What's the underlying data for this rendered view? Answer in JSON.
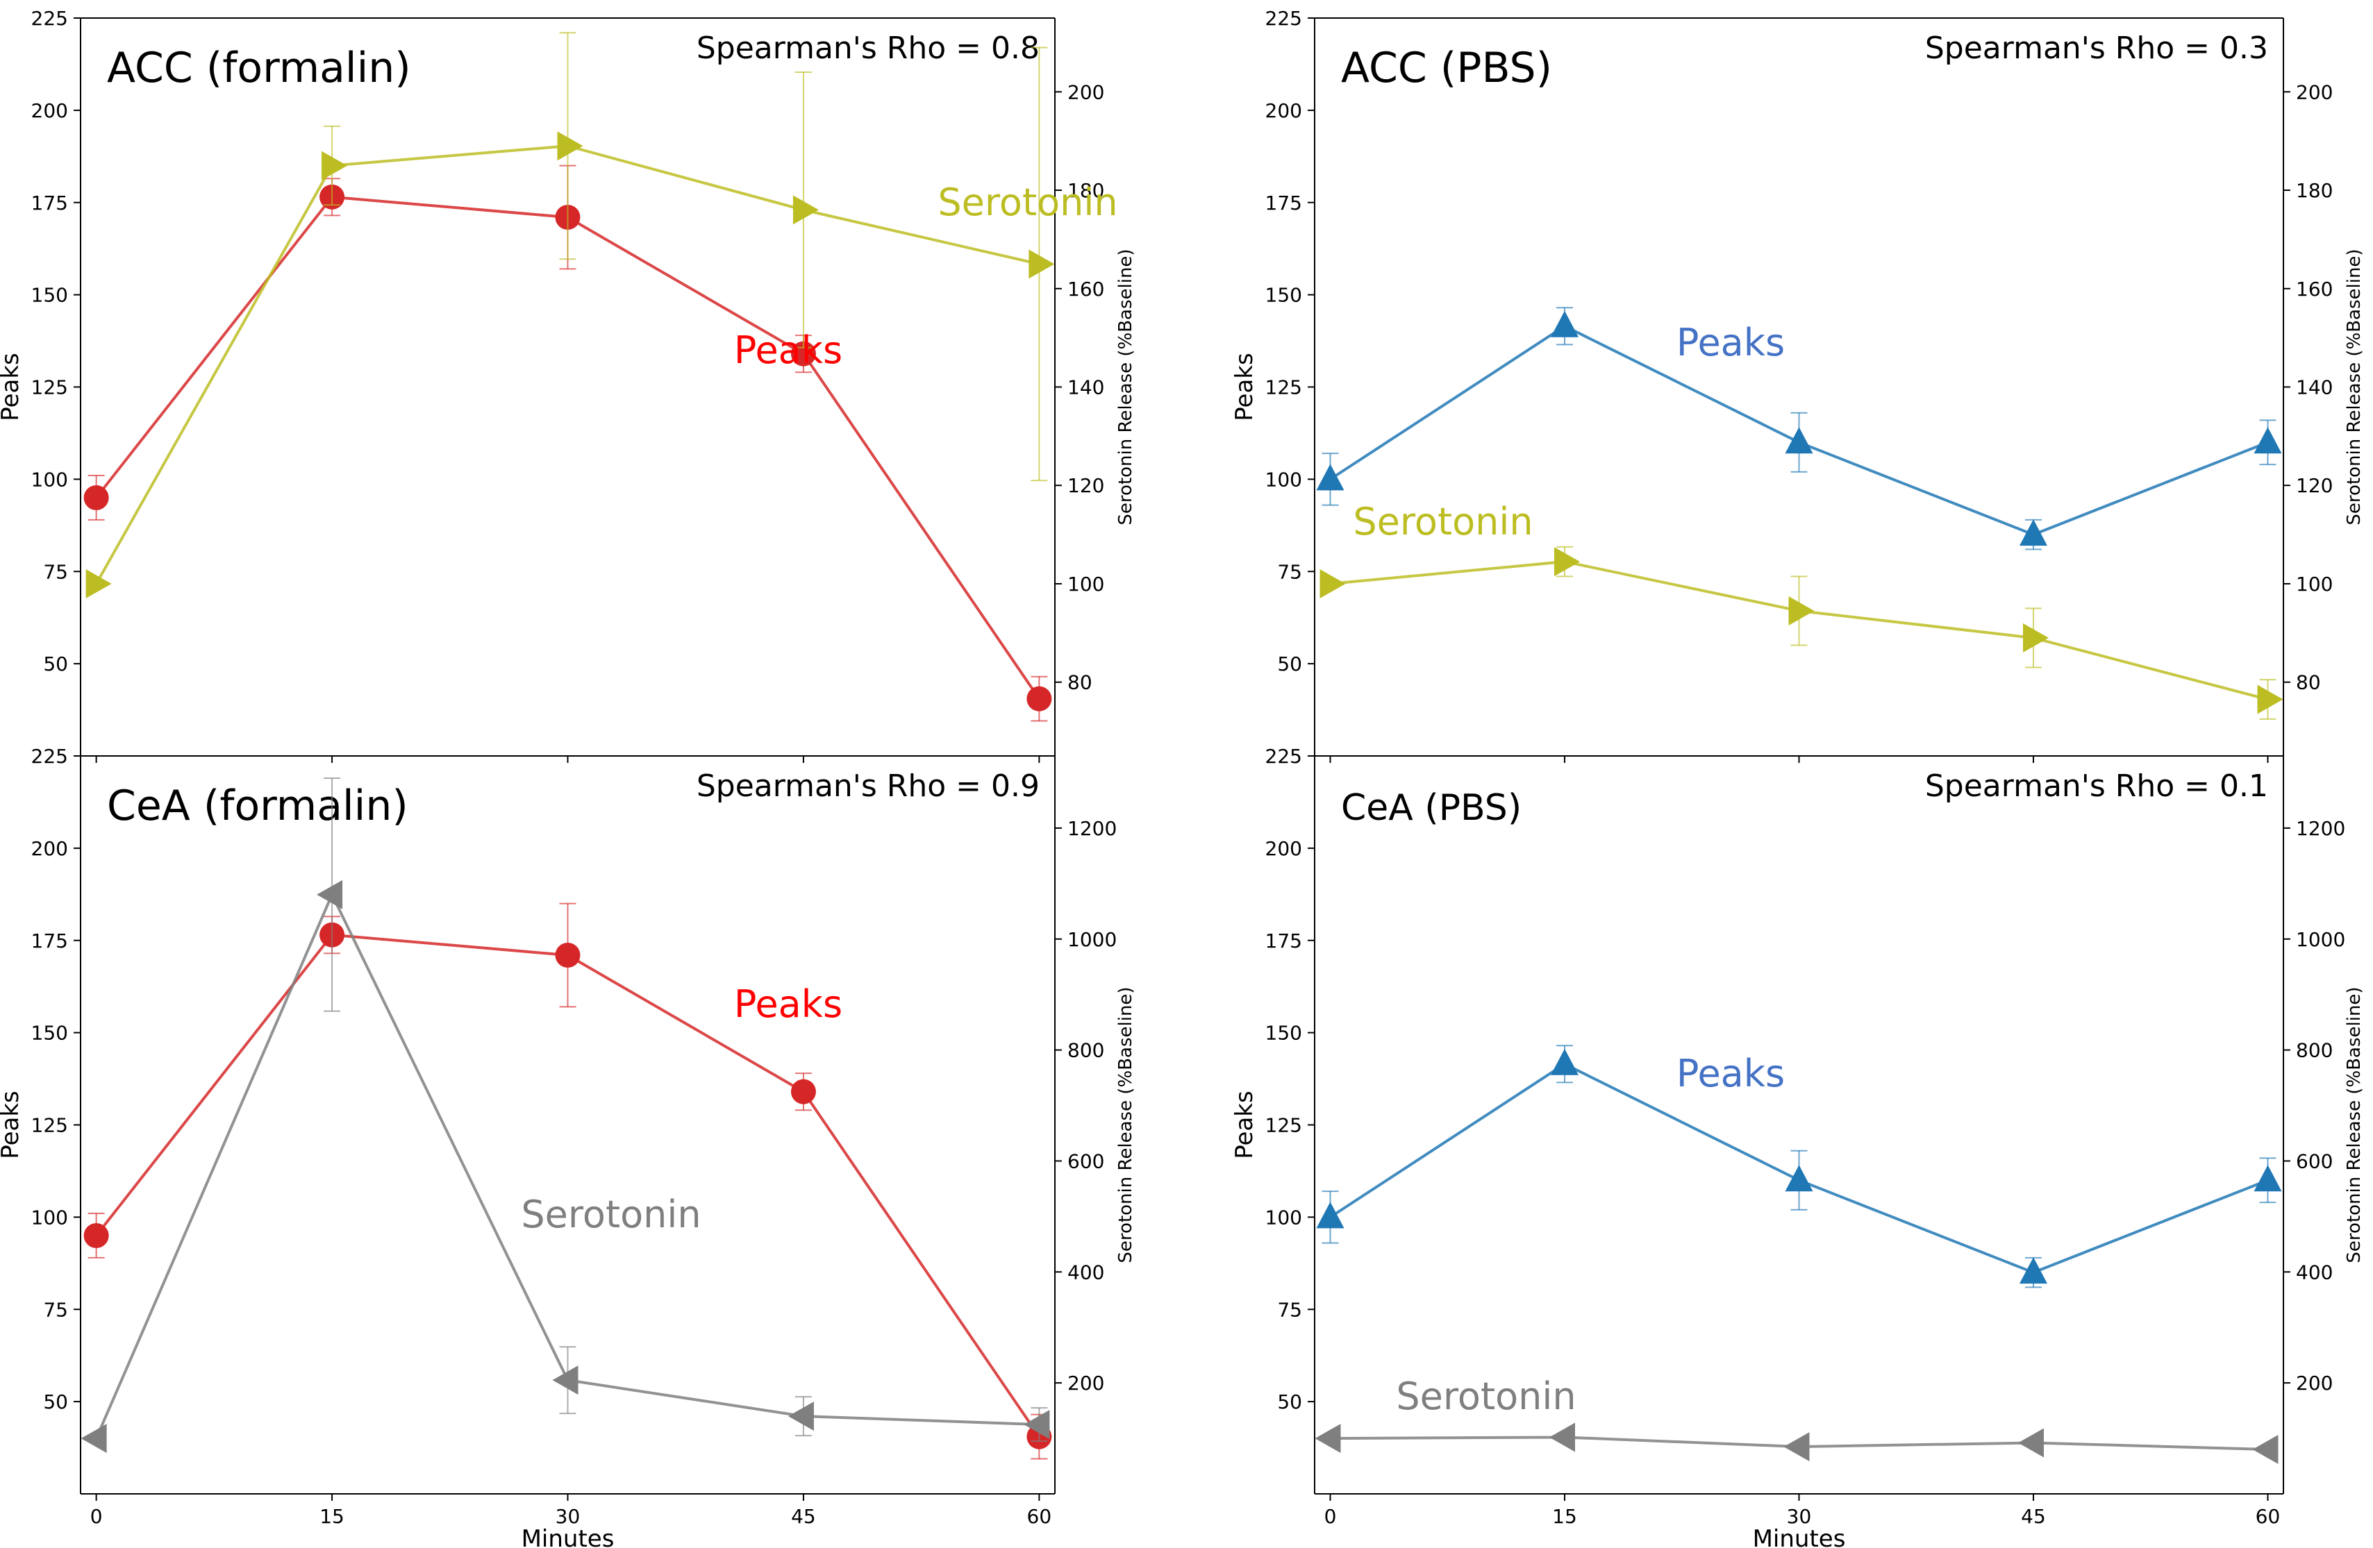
{
  "figure": {
    "x_label": "Minutes",
    "left_y_label": "Peaks",
    "right_y_label": "Serotonin Release (%Baseline)"
  },
  "colors": {
    "peaks_red": "#d62728",
    "peaks_blue": "#1f77b4",
    "serotonin_olive": "#bcbd22",
    "serotonin_gray": "#7f7f7f",
    "label_red": "#ff0000",
    "label_blue": "#4472c4",
    "label_olive": "#bcbd22",
    "label_gray": "#7f7f7f",
    "axis": "#000000"
  },
  "chart_data": [
    {
      "type": "line",
      "title": "ACC (formalin)",
      "stat": "Spearman's Rho = 0.8",
      "x": [
        0,
        15,
        30,
        45,
        60
      ],
      "x_ticks": [
        "0",
        "15",
        "30",
        "45",
        "60"
      ],
      "xlim": [
        -1,
        61
      ],
      "ylim": [
        25,
        225
      ],
      "y_ticks": [
        50,
        75,
        100,
        125,
        150,
        175,
        200,
        225
      ],
      "y2lim": [
        65,
        215
      ],
      "y2_ticks": [
        80,
        100,
        120,
        140,
        160,
        180,
        200
      ],
      "series": [
        {
          "name": "Peaks",
          "axis": "left",
          "marker": "circle",
          "color": "#d62728",
          "values": [
            95,
            176.5,
            171,
            134,
            40.5
          ],
          "errors": [
            6,
            5,
            14,
            5,
            6
          ]
        },
        {
          "name": "Serotonin",
          "axis": "right",
          "marker": "triangle-right",
          "color": "#bcbd22",
          "values": [
            100,
            185,
            189,
            176,
            165
          ],
          "errors": [
            0,
            8,
            23,
            28,
            44
          ]
        }
      ],
      "labels": [
        {
          "text": "Peaks",
          "series": "Peaks",
          "color": "#ff0000"
        },
        {
          "text": "Serotonin",
          "series": "Serotonin",
          "color": "#bcbd22"
        }
      ]
    },
    {
      "type": "line",
      "title": "ACC (PBS)",
      "stat": "Spearman's Rho = 0.3",
      "x": [
        0,
        15,
        30,
        45,
        60
      ],
      "x_ticks": [
        "0",
        "15",
        "30",
        "45",
        "60"
      ],
      "xlim": [
        -1,
        61
      ],
      "ylim": [
        25,
        225
      ],
      "y_ticks": [
        50,
        75,
        100,
        125,
        150,
        175,
        200,
        225
      ],
      "y2lim": [
        65,
        215
      ],
      "y2_ticks": [
        80,
        100,
        120,
        140,
        160,
        180,
        200
      ],
      "series": [
        {
          "name": "Peaks",
          "axis": "left",
          "marker": "triangle-up",
          "color": "#1f77b4",
          "values": [
            100,
            141.5,
            110,
            85,
            110
          ],
          "errors": [
            7,
            5,
            8,
            4,
            6
          ]
        },
        {
          "name": "Serotonin",
          "axis": "right",
          "marker": "triangle-right",
          "color": "#bcbd22",
          "values": [
            100,
            104.5,
            94.5,
            89,
            76.5
          ],
          "errors": [
            0,
            3,
            7,
            6,
            4
          ]
        }
      ],
      "labels": [
        {
          "text": "Peaks",
          "series": "Peaks",
          "color": "#4472c4"
        },
        {
          "text": "Serotonin",
          "series": "Serotonin",
          "color": "#bcbd22"
        }
      ]
    },
    {
      "type": "line",
      "title": "CeA (formalin)",
      "stat": "Spearman's Rho = 0.9",
      "x": [
        0,
        15,
        30,
        45,
        60
      ],
      "x_ticks": [
        "0",
        "15",
        "30",
        "45",
        "60"
      ],
      "xlim": [
        -1,
        61
      ],
      "ylim": [
        25,
        225
      ],
      "y_ticks": [
        50,
        75,
        100,
        125,
        150,
        175,
        200,
        225
      ],
      "y2lim": [
        0,
        1330
      ],
      "y2_ticks": [
        200,
        400,
        600,
        800,
        1000,
        1200
      ],
      "series": [
        {
          "name": "Peaks",
          "axis": "left",
          "marker": "circle",
          "color": "#d62728",
          "values": [
            95,
            176.5,
            171,
            134,
            40.5
          ],
          "errors": [
            6,
            5,
            14,
            5,
            6
          ]
        },
        {
          "name": "Serotonin",
          "axis": "right",
          "marker": "triangle-left",
          "color": "#7f7f7f",
          "values": [
            100,
            1080,
            205,
            140,
            125
          ],
          "errors": [
            0,
            210,
            60,
            35,
            30
          ]
        }
      ],
      "labels": [
        {
          "text": "Peaks",
          "series": "Peaks",
          "color": "#ff0000"
        },
        {
          "text": "Serotonin",
          "series": "Serotonin",
          "color": "#7f7f7f"
        }
      ]
    },
    {
      "type": "line",
      "title": "CeA (PBS)",
      "stat": "Spearman's Rho = 0.1",
      "x": [
        0,
        15,
        30,
        45,
        60
      ],
      "x_ticks": [
        "0",
        "15",
        "30",
        "45",
        "60"
      ],
      "xlim": [
        -1,
        61
      ],
      "ylim": [
        25,
        225
      ],
      "y_ticks": [
        50,
        75,
        100,
        125,
        150,
        175,
        200,
        225
      ],
      "y2lim": [
        0,
        1330
      ],
      "y2_ticks": [
        200,
        400,
        600,
        800,
        1000,
        1200
      ],
      "series": [
        {
          "name": "Peaks",
          "axis": "left",
          "marker": "triangle-up",
          "color": "#1f77b4",
          "values": [
            100,
            141.5,
            110,
            85,
            110
          ],
          "errors": [
            7,
            5,
            8,
            4,
            6
          ]
        },
        {
          "name": "Serotonin",
          "axis": "right",
          "marker": "triangle-left",
          "color": "#7f7f7f",
          "values": [
            100,
            102,
            85,
            92,
            80
          ],
          "errors": [
            0,
            0,
            0,
            0,
            0
          ]
        }
      ],
      "labels": [
        {
          "text": "Peaks",
          "series": "Peaks",
          "color": "#4472c4"
        },
        {
          "text": "Serotonin",
          "series": "Serotonin",
          "color": "#7f7f7f"
        }
      ]
    }
  ]
}
